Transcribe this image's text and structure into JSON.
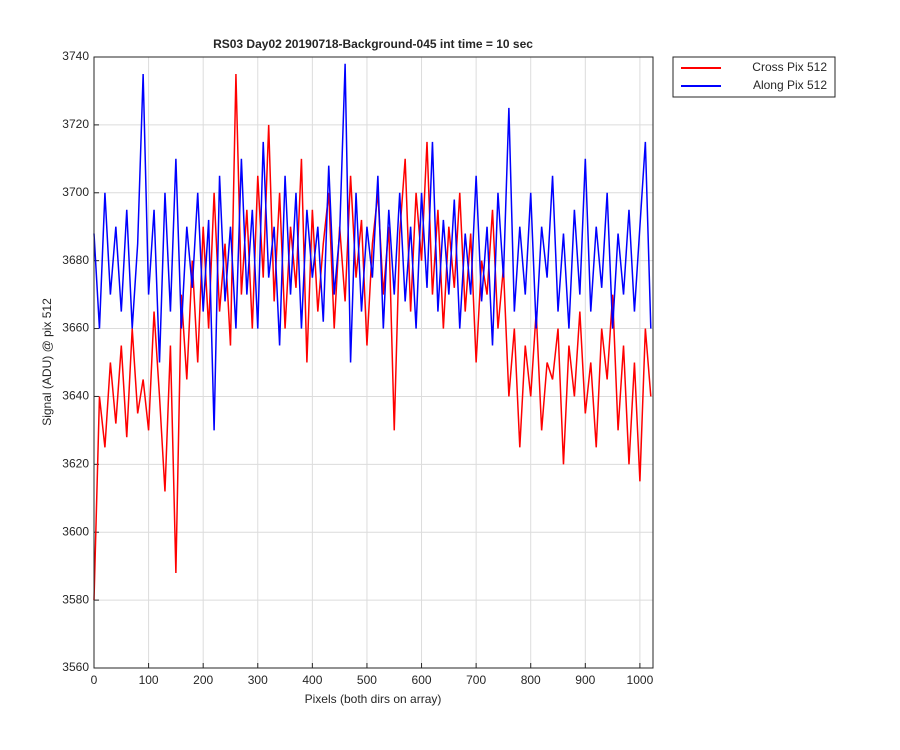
{
  "chart_data": {
    "type": "line",
    "title": "RS03 Day02 20190718-Background-045 int time = 10 sec",
    "xlabel": "Pixels (both dirs on array)",
    "ylabel": "Signal (ADU) @ pix 512",
    "x": [
      0,
      10,
      20,
      30,
      40,
      50,
      60,
      70,
      80,
      90,
      100,
      110,
      120,
      130,
      140,
      150,
      160,
      170,
      180,
      190,
      200,
      210,
      220,
      230,
      240,
      250,
      260,
      270,
      280,
      290,
      300,
      310,
      320,
      330,
      340,
      350,
      360,
      370,
      380,
      390,
      400,
      410,
      420,
      430,
      440,
      450,
      460,
      470,
      480,
      490,
      500,
      510,
      520,
      530,
      540,
      550,
      560,
      570,
      580,
      590,
      600,
      610,
      620,
      630,
      640,
      650,
      660,
      670,
      680,
      690,
      700,
      710,
      720,
      730,
      740,
      750,
      760,
      770,
      780,
      790,
      800,
      810,
      820,
      830,
      840,
      850,
      860,
      870,
      880,
      890,
      900,
      910,
      920,
      930,
      940,
      950,
      960,
      970,
      980,
      990,
      1000,
      1010,
      1020
    ],
    "series": [
      {
        "name": "Cross Pix 512",
        "color": "#ff0000",
        "values": [
          3580,
          3640,
          3625,
          3650,
          3632,
          3655,
          3628,
          3660,
          3635,
          3645,
          3630,
          3665,
          3640,
          3612,
          3655,
          3588,
          3670,
          3645,
          3680,
          3650,
          3690,
          3660,
          3700,
          3665,
          3685,
          3655,
          3735,
          3670,
          3695,
          3660,
          3705,
          3675,
          3720,
          3668,
          3700,
          3660,
          3690,
          3672,
          3710,
          3650,
          3695,
          3665,
          3685,
          3700,
          3660,
          3690,
          3668,
          3705,
          3675,
          3692,
          3655,
          3685,
          3700,
          3670,
          3690,
          3630,
          3688,
          3710,
          3665,
          3700,
          3680,
          3715,
          3670,
          3695,
          3660,
          3690,
          3672,
          3700,
          3665,
          3688,
          3650,
          3680,
          3670,
          3695,
          3660,
          3678,
          3640,
          3660,
          3625,
          3655,
          3640,
          3665,
          3630,
          3650,
          3645,
          3660,
          3620,
          3655,
          3640,
          3665,
          3635,
          3650,
          3625,
          3660,
          3645,
          3670,
          3630,
          3655,
          3620,
          3650,
          3615,
          3660,
          3640
        ]
      },
      {
        "name": "Along Pix 512",
        "color": "#0000ff",
        "values": [
          3688,
          3660,
          3700,
          3670,
          3690,
          3665,
          3695,
          3660,
          3685,
          3735,
          3670,
          3695,
          3650,
          3700,
          3665,
          3710,
          3660,
          3690,
          3672,
          3700,
          3665,
          3692,
          3630,
          3705,
          3668,
          3690,
          3660,
          3710,
          3670,
          3695,
          3660,
          3715,
          3675,
          3690,
          3655,
          3705,
          3670,
          3700,
          3660,
          3695,
          3675,
          3690,
          3662,
          3708,
          3670,
          3688,
          3738,
          3650,
          3700,
          3665,
          3690,
          3675,
          3705,
          3660,
          3695,
          3670,
          3700,
          3668,
          3690,
          3660,
          3700,
          3672,
          3715,
          3665,
          3692,
          3670,
          3698,
          3660,
          3688,
          3670,
          3705,
          3668,
          3690,
          3655,
          3700,
          3675,
          3725,
          3665,
          3690,
          3670,
          3700,
          3660,
          3690,
          3675,
          3705,
          3665,
          3688,
          3660,
          3695,
          3670,
          3710,
          3665,
          3690,
          3672,
          3700,
          3660,
          3688,
          3670,
          3695,
          3665,
          3690,
          3715,
          3660
        ]
      }
    ],
    "xlim": [
      0,
      1024
    ],
    "xticks": [
      0,
      100,
      200,
      300,
      400,
      500,
      600,
      700,
      800,
      900,
      1000
    ],
    "ylim": [
      3560,
      3740
    ],
    "yticks": [
      3560,
      3580,
      3600,
      3620,
      3640,
      3660,
      3680,
      3700,
      3720,
      3740
    ],
    "grid": true,
    "legend": "outside-upper-right"
  }
}
